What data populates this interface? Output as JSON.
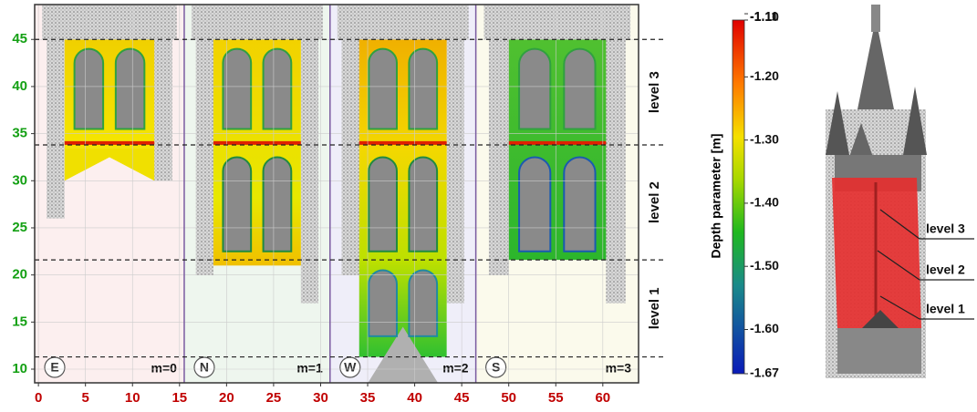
{
  "plot": {
    "xlim": [
      -0.4,
      63.8
    ],
    "ylim": [
      8.55,
      48.7
    ],
    "xticks": [
      0,
      5,
      10,
      15,
      20,
      25,
      30,
      35,
      40,
      45,
      50,
      55,
      60
    ],
    "yticks": [
      10,
      15,
      20,
      25,
      30,
      35,
      40,
      45
    ],
    "panel_edges": [
      15.5,
      31,
      46.5
    ],
    "panels": [
      {
        "label": "E",
        "m": "m=0"
      },
      {
        "label": "N",
        "m": "m=1"
      },
      {
        "label": "W",
        "m": "m=2"
      },
      {
        "label": "S",
        "m": "m=3"
      }
    ],
    "level_boundaries": [
      11.3,
      21.6,
      33.8,
      45
    ],
    "levels": [
      "level 1",
      "level 2",
      "level 3"
    ]
  },
  "colorbar": {
    "label": "Depth parameter [m]",
    "lim": [
      -1.67,
      -1.11
    ],
    "ticks": [
      -1.11,
      {
        "value": -1.1,
        "label": "-1.10"
      },
      {
        "value": -1.2,
        "label": "-1.20"
      },
      {
        "value": -1.3,
        "label": "-1.30"
      },
      {
        "value": -1.4,
        "label": "-1.40"
      },
      {
        "value": -1.5,
        "label": "-1.50"
      },
      {
        "value": -1.6,
        "label": "-1.60"
      },
      -1.67
    ]
  },
  "tower": {
    "labels": [
      "level 3",
      "level 2",
      "level 1"
    ]
  }
}
